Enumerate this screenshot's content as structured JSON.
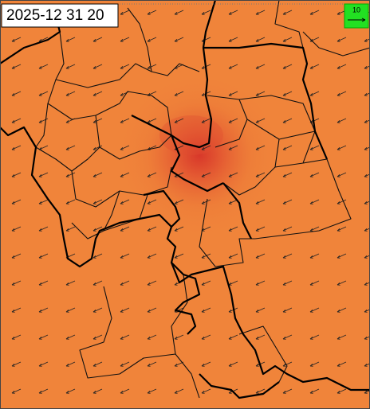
{
  "header": {
    "timestamp": "2025-12 31 20"
  },
  "legend": {
    "label": "10"
  }
}
